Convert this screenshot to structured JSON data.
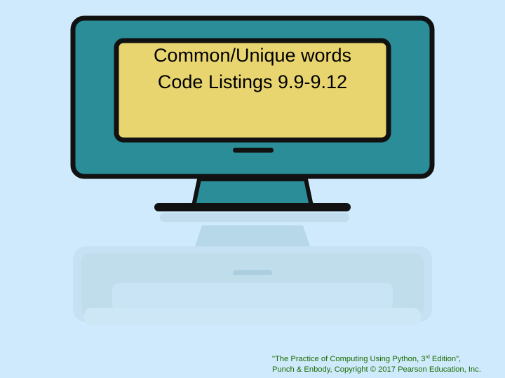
{
  "slide": {
    "title_line1": "Common/Unique words",
    "title_line2": "Code Listings 9.9-9.12",
    "footer": {
      "line1_before_sup": "\"The Practice of Computing Using Python, 3",
      "line1_sup": "rd",
      "line1_after_sup": " Edition\",",
      "line2": "Punch & Enbody, Copyright © 2017 Pearson Education, Inc."
    }
  },
  "colors": {
    "background": "#cfeafc",
    "monitor_body": "#2a8d98",
    "monitor_outline": "#111111",
    "screen": "#e8d56f",
    "footer_text": "#1b6b00"
  },
  "icons": {
    "illustration": "computer-monitor-icon"
  }
}
